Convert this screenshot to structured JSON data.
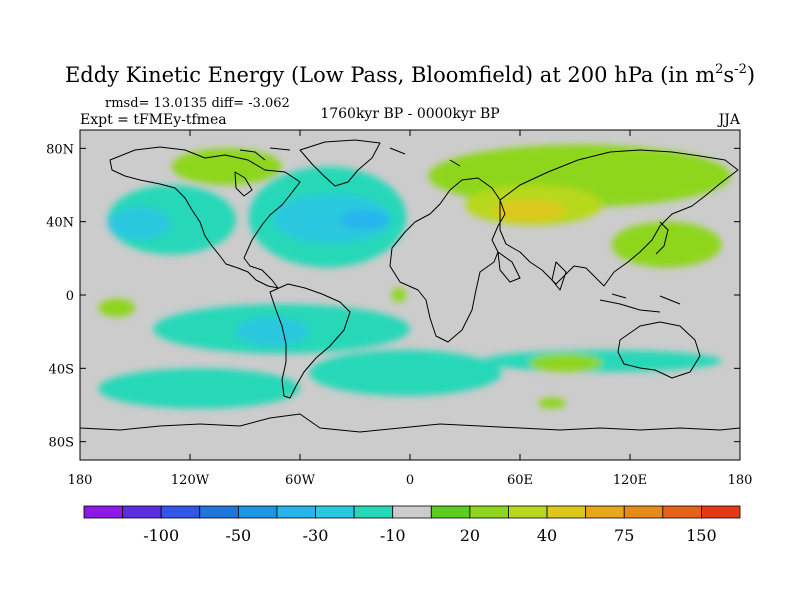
{
  "chart_data": {
    "type": "heatmap",
    "title_main": "Eddy Kinetic Energy (Low Pass, Bloomfield) at 200 hPa (in m",
    "title_sup1": "2",
    "title_mid": "s",
    "title_sup2": "-2",
    "title_end": ")",
    "stats_label": "rmsd= 13.0135 diff= -3.062",
    "experiment_label": "Expt = tFMEy-tfmea",
    "period_label": "1760kyr BP - 0000kyr BP",
    "season_label": "JJA",
    "x_ticks": [
      {
        "value": -180,
        "label": "180"
      },
      {
        "value": -120,
        "label": "120W"
      },
      {
        "value": -60,
        "label": "60W"
      },
      {
        "value": 0,
        "label": "0"
      },
      {
        "value": 60,
        "label": "60E"
      },
      {
        "value": 120,
        "label": "120E"
      },
      {
        "value": 180,
        "label": "180"
      }
    ],
    "y_ticks": [
      {
        "value": 80,
        "label": "80N"
      },
      {
        "value": 40,
        "label": "40N"
      },
      {
        "value": 0,
        "label": "0"
      },
      {
        "value": -40,
        "label": "40S"
      },
      {
        "value": -80,
        "label": "80S"
      }
    ],
    "xlim": [
      -180,
      180
    ],
    "ylim": [
      -90,
      90
    ],
    "colorbar": {
      "colors": [
        "#8c19e6",
        "#5a2fe0",
        "#3257e8",
        "#1e78dc",
        "#1e96e6",
        "#28b4ee",
        "#2ac8de",
        "#26d8b8",
        "#cccccc",
        "#5ccc1e",
        "#8ed61e",
        "#b8d81e",
        "#dcc81a",
        "#e6a81a",
        "#e68a18",
        "#e66418",
        "#e63a14"
      ],
      "labels": [
        {
          "after_bin": 2,
          "label": "-100"
        },
        {
          "after_bin": 4,
          "label": "-50"
        },
        {
          "after_bin": 6,
          "label": "-30"
        },
        {
          "after_bin": 8,
          "label": "-10"
        },
        {
          "after_bin": 10,
          "label": "20"
        },
        {
          "after_bin": 12,
          "label": "40"
        },
        {
          "after_bin": 14,
          "label": "75"
        },
        {
          "after_bin": 16,
          "label": "150"
        }
      ]
    },
    "background_color": "#cccccc",
    "regions": [
      {
        "name": "n-america-west",
        "level": 7,
        "lon": [
          -165,
          -95
        ],
        "lat": [
          22,
          60
        ]
      },
      {
        "name": "n-atlantic",
        "level": 7,
        "lon": [
          -88,
          -2
        ],
        "lat": [
          15,
          70
        ]
      },
      {
        "name": "n-atlantic-core",
        "level": 6,
        "lon": [
          -75,
          -10
        ],
        "lat": [
          28,
          55
        ]
      },
      {
        "name": "n-atlantic-min",
        "level": 5,
        "lon": [
          -38,
          -12
        ],
        "lat": [
          36,
          46
        ]
      },
      {
        "name": "ne-pacific-core",
        "level": 6,
        "lon": [
          -165,
          -130
        ],
        "lat": [
          30,
          48
        ]
      },
      {
        "name": "arctic-east",
        "level": 10,
        "lon": [
          10,
          175
        ],
        "lat": [
          48,
          82
        ]
      },
      {
        "name": "siberia-strong",
        "level": 11,
        "lon": [
          30,
          105
        ],
        "lat": [
          38,
          60
        ]
      },
      {
        "name": "siberia-peak",
        "level": 12,
        "lon": [
          45,
          85
        ],
        "lat": [
          40,
          52
        ]
      },
      {
        "name": "pacific-north",
        "level": 10,
        "lon": [
          110,
          170
        ],
        "lat": [
          15,
          40
        ]
      },
      {
        "name": "greenland-arc",
        "level": 10,
        "lon": [
          -130,
          -70
        ],
        "lat": [
          60,
          80
        ]
      },
      {
        "name": "s-subtropic-band",
        "level": 7,
        "lon": [
          -140,
          0
        ],
        "lat": [
          -32,
          -5
        ]
      },
      {
        "name": "s-subtropic-core",
        "level": 6,
        "lon": [
          -95,
          -55
        ],
        "lat": [
          -28,
          -12
        ]
      },
      {
        "name": "s-ocean-atlantic",
        "level": 7,
        "lon": [
          -55,
          50
        ],
        "lat": [
          -55,
          -30
        ]
      },
      {
        "name": "s-ocean-indian",
        "level": 7,
        "lon": [
          40,
          170
        ],
        "lat": [
          -42,
          -30
        ]
      },
      {
        "name": "s-pacific",
        "level": 7,
        "lon": [
          -170,
          -60
        ],
        "lat": [
          -62,
          -40
        ]
      },
      {
        "name": "east-pacific-green",
        "level": 10,
        "lon": [
          -170,
          -150
        ],
        "lat": [
          -12,
          -2
        ]
      },
      {
        "name": "africa-green",
        "level": 10,
        "lon": [
          -10,
          -2
        ],
        "lat": [
          -4,
          4
        ]
      },
      {
        "name": "indian-green",
        "level": 10,
        "lon": [
          65,
          105
        ],
        "lat": [
          -42,
          -32
        ]
      },
      {
        "name": "antarctic-green",
        "level": 10,
        "lon": [
          70,
          85
        ],
        "lat": [
          -62,
          -56
        ]
      }
    ]
  }
}
